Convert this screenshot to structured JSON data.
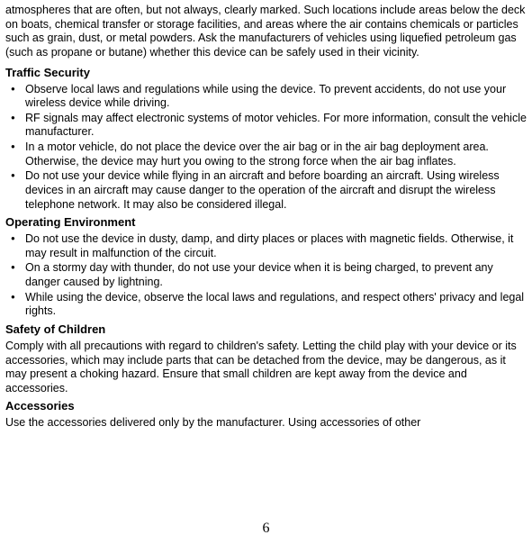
{
  "intro": "atmospheres that are often, but not always, clearly marked. Such locations include areas below the deck on boats, chemical transfer or storage facilities, and areas where the air contains chemicals or particles such as grain, dust, or metal powders. Ask the manufacturers of vehicles using liquefied petroleum gas (such as propane or butane) whether this device can be safely used in their vicinity.",
  "sections": {
    "traffic": {
      "heading": "Traffic Security",
      "items": [
        "Observe local laws and regulations while using the device. To prevent accidents, do not use your wireless device while driving.",
        "RF signals may affect electronic systems of motor vehicles. For more information, consult the vehicle manufacturer.",
        "In a motor vehicle, do not place the device over the air bag or in the air bag deployment area. Otherwise, the device may hurt you owing to the strong force when the air bag inflates.",
        "Do not use your device while flying in an aircraft and before boarding an aircraft. Using wireless devices in an aircraft may cause danger to the operation of the aircraft and disrupt the wireless telephone network. It may also be considered illegal."
      ]
    },
    "operating": {
      "heading": "Operating Environment",
      "items": [
        "Do not use the device in dusty, damp, and dirty places or places with magnetic fields. Otherwise, it may result in malfunction of the circuit.",
        "On a stormy day with thunder, do not use your device when it is being charged, to prevent any danger caused by lightning.",
        "While using the device, observe the local laws and regulations, and respect others' privacy and legal rights."
      ]
    },
    "children": {
      "heading": "Safety of Children",
      "text": "Comply with all precautions with regard to children's safety. Letting the child play with your device or its accessories, which may include parts that can be detached from the device, may be dangerous, as it may present a choking hazard. Ensure that small children are kept away from the device and accessories."
    },
    "accessories": {
      "heading": "Accessories",
      "text": "Use the accessories delivered only by the manufacturer. Using accessories of other"
    }
  },
  "page_number": "6"
}
